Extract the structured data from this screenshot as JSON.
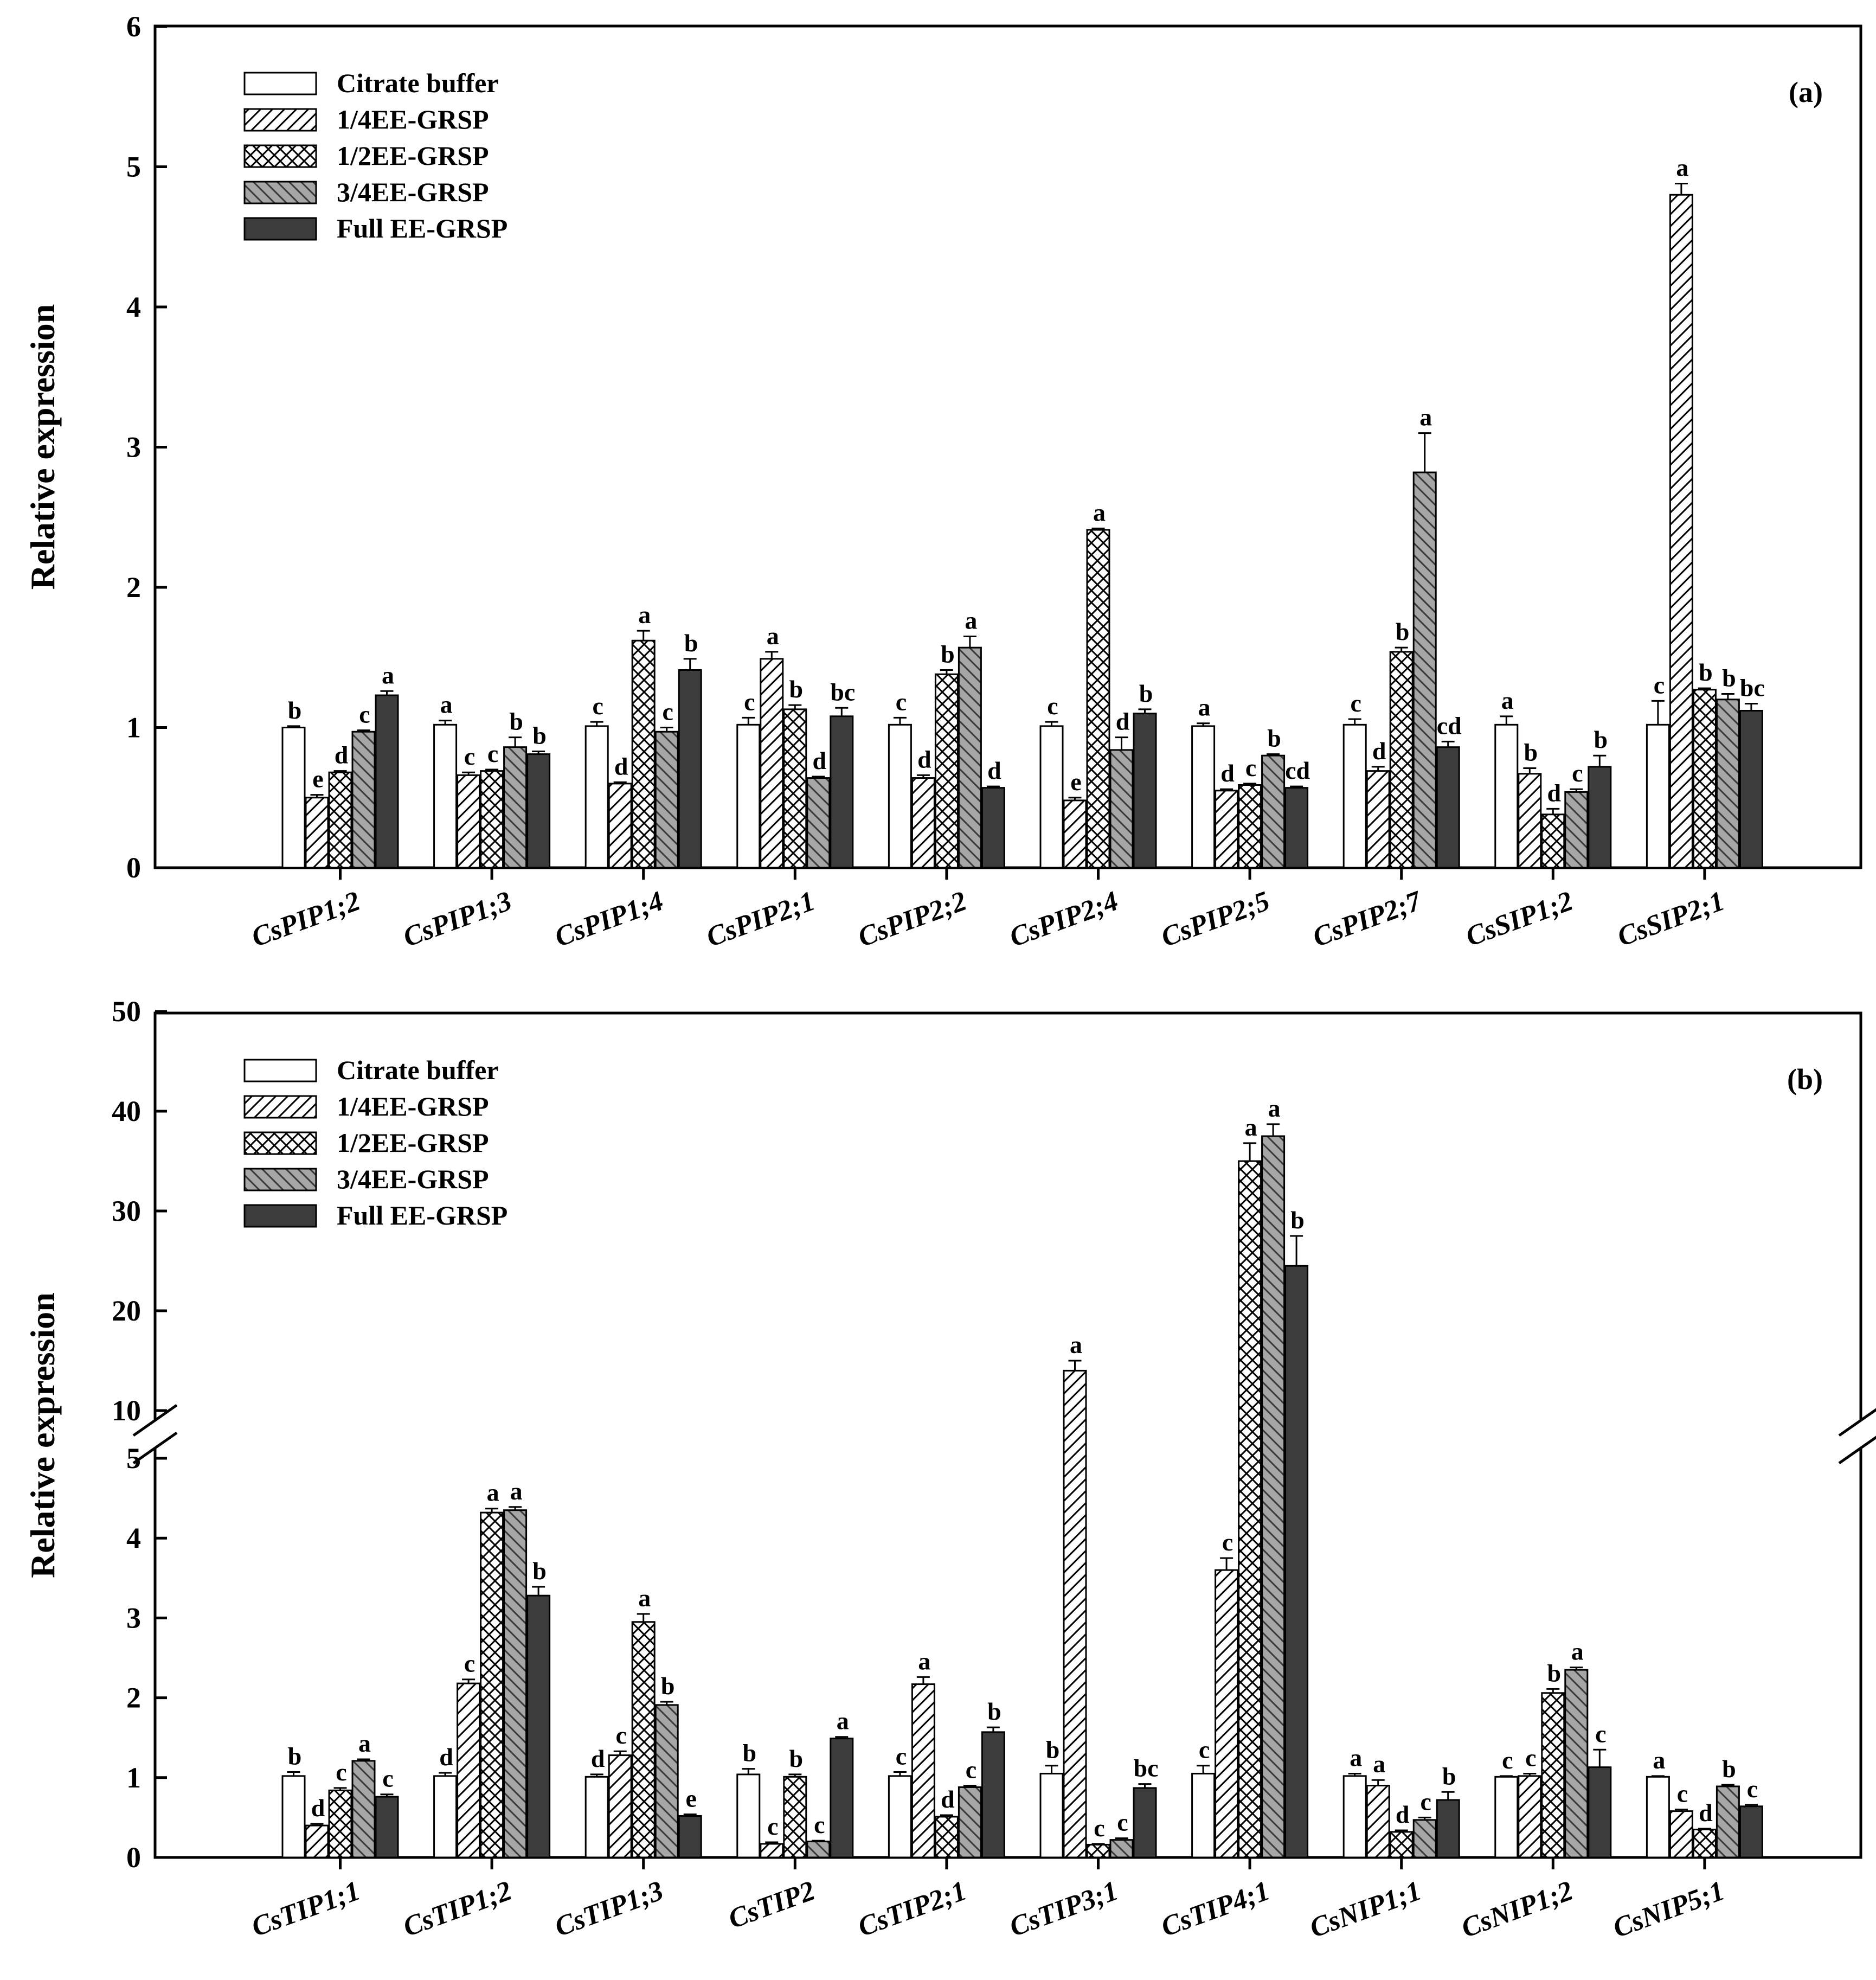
{
  "chart_data": [
    {
      "type": "bar",
      "panel_label": "(a)",
      "ylabel": "Relative expression",
      "ylim": [
        0,
        6
      ],
      "yticks": [
        "0",
        "1",
        "2",
        "3",
        "4",
        "5",
        "6"
      ],
      "legend_position": "top-left",
      "categories": [
        "CsPIP1;2",
        "CsPIP1;3",
        "CsPIP1;4",
        "CsPIP2;1",
        "CsPIP2;2",
        "CsPIP2;4",
        "CsPIP2;5",
        "CsPIP2;7",
        "CsSIP1;2",
        "CsSIP2;1"
      ],
      "series": [
        {
          "name": "Citrate buffer",
          "pattern": "open",
          "values": [
            1.0,
            1.02,
            1.01,
            1.02,
            1.02,
            1.01,
            1.01,
            1.02,
            1.02,
            1.02
          ],
          "errors": [
            0.01,
            0.03,
            0.03,
            0.05,
            0.05,
            0.03,
            0.02,
            0.04,
            0.06,
            0.17
          ],
          "letters": [
            "b",
            "a",
            "c",
            "c",
            "c",
            "c",
            "a",
            "c",
            "a",
            "c"
          ]
        },
        {
          "name": "1/4EE-GRSP",
          "pattern": "diag",
          "values": [
            0.5,
            0.66,
            0.6,
            1.49,
            0.64,
            0.48,
            0.55,
            0.69,
            0.67,
            4.8
          ],
          "errors": [
            0.02,
            0.02,
            0.01,
            0.05,
            0.02,
            0.02,
            0.01,
            0.03,
            0.04,
            0.08
          ],
          "letters": [
            "e",
            "c",
            "d",
            "a",
            "d",
            "e",
            "d",
            "d",
            "b",
            "a"
          ]
        },
        {
          "name": "1/2EE-GRSP",
          "pattern": "cross",
          "values": [
            0.68,
            0.69,
            1.62,
            1.13,
            1.38,
            2.41,
            0.59,
            1.54,
            0.38,
            1.27
          ],
          "errors": [
            0.01,
            0.01,
            0.07,
            0.03,
            0.03,
            0.01,
            0.01,
            0.03,
            0.04,
            0.01
          ],
          "letters": [
            "d",
            "c",
            "a",
            "b",
            "b",
            "a",
            "c",
            "b",
            "d",
            "b"
          ]
        },
        {
          "name": "3/4EE-GRSP",
          "pattern": "grey",
          "values": [
            0.97,
            0.86,
            0.97,
            0.64,
            1.57,
            0.84,
            0.8,
            2.82,
            0.54,
            1.2
          ],
          "errors": [
            0.01,
            0.07,
            0.03,
            0.01,
            0.08,
            0.09,
            0.01,
            0.28,
            0.02,
            0.04
          ],
          "letters": [
            "c",
            "b",
            "c",
            "d",
            "a",
            "d",
            "b",
            "a",
            "c",
            "b"
          ]
        },
        {
          "name": "Full EE-GRSP",
          "pattern": "black",
          "values": [
            1.23,
            0.81,
            1.41,
            1.08,
            0.57,
            1.1,
            0.57,
            0.86,
            0.72,
            1.12
          ],
          "errors": [
            0.03,
            0.02,
            0.08,
            0.06,
            0.01,
            0.03,
            0.01,
            0.04,
            0.08,
            0.05
          ],
          "letters": [
            "a",
            "b",
            "b",
            "bc",
            "d",
            "b",
            "cd",
            "cd",
            "b",
            "bc"
          ]
        }
      ]
    },
    {
      "type": "bar",
      "panel_label": "(b)",
      "ylabel": "Relative expression",
      "ylim": [
        0,
        50
      ],
      "axis_break": [
        5,
        10
      ],
      "yticks": [
        "0",
        "1",
        "2",
        "3",
        "4",
        "5",
        "10",
        "20",
        "30",
        "40",
        "50"
      ],
      "legend_position": "top-left",
      "categories": [
        "CsTIP1;1",
        "CsTIP1;2",
        "CsTIP1;3",
        "CsTIP2",
        "CsTIP2;1",
        "CsTIP3;1",
        "CsTIP4;1",
        "CsNIP1;1",
        "CsNIP1;2",
        "CsNIP5;1"
      ],
      "series": [
        {
          "name": "Citrate buffer",
          "pattern": "open",
          "values": [
            1.02,
            1.02,
            1.01,
            1.04,
            1.02,
            1.05,
            1.05,
            1.02,
            1.01,
            1.01
          ],
          "errors": [
            0.05,
            0.04,
            0.03,
            0.07,
            0.05,
            0.1,
            0.1,
            0.03,
            0.01,
            0.01
          ],
          "letters": [
            "b",
            "d",
            "d",
            "b",
            "c",
            "b",
            "c",
            "a",
            "c",
            "a"
          ]
        },
        {
          "name": "1/4EE-GRSP",
          "pattern": "diag",
          "values": [
            0.4,
            2.18,
            1.28,
            0.17,
            2.17,
            14.0,
            3.6,
            0.9,
            1.02,
            0.58
          ],
          "errors": [
            0.02,
            0.05,
            0.05,
            0.02,
            0.09,
            1.0,
            0.15,
            0.07,
            0.03,
            0.02
          ],
          "letters": [
            "d",
            "c",
            "c",
            "c",
            "a",
            "a",
            "c",
            "a",
            "c",
            "c"
          ]
        },
        {
          "name": "1/2EE-GRSP",
          "pattern": "cross",
          "values": [
            0.84,
            4.32,
            2.95,
            1.01,
            0.51,
            0.16,
            35.0,
            0.32,
            2.06,
            0.35
          ],
          "errors": [
            0.03,
            0.05,
            0.1,
            0.03,
            0.02,
            0.01,
            1.8,
            0.02,
            0.05,
            0.01
          ],
          "letters": [
            "c",
            "a",
            "a",
            "b",
            "d",
            "c",
            "a",
            "d",
            "b",
            "d"
          ]
        },
        {
          "name": "3/4EE-GRSP",
          "pattern": "grey",
          "values": [
            1.21,
            4.35,
            1.91,
            0.2,
            0.88,
            0.22,
            37.5,
            0.47,
            2.35,
            0.89
          ],
          "errors": [
            0.02,
            0.04,
            0.04,
            0.01,
            0.02,
            0.02,
            1.2,
            0.03,
            0.03,
            0.02
          ],
          "letters": [
            "a",
            "a",
            "b",
            "c",
            "c",
            "c",
            "a",
            "c",
            "a",
            "b"
          ]
        },
        {
          "name": "Full EE-GRSP",
          "pattern": "black",
          "values": [
            0.76,
            3.28,
            0.52,
            1.49,
            1.57,
            0.87,
            24.5,
            0.72,
            1.13,
            0.64
          ],
          "errors": [
            0.03,
            0.11,
            0.02,
            0.02,
            0.06,
            0.05,
            3.0,
            0.1,
            0.22,
            0.02
          ],
          "letters": [
            "c",
            "b",
            "e",
            "a",
            "b",
            "bc",
            "b",
            "b",
            "c",
            "c"
          ]
        }
      ]
    }
  ]
}
